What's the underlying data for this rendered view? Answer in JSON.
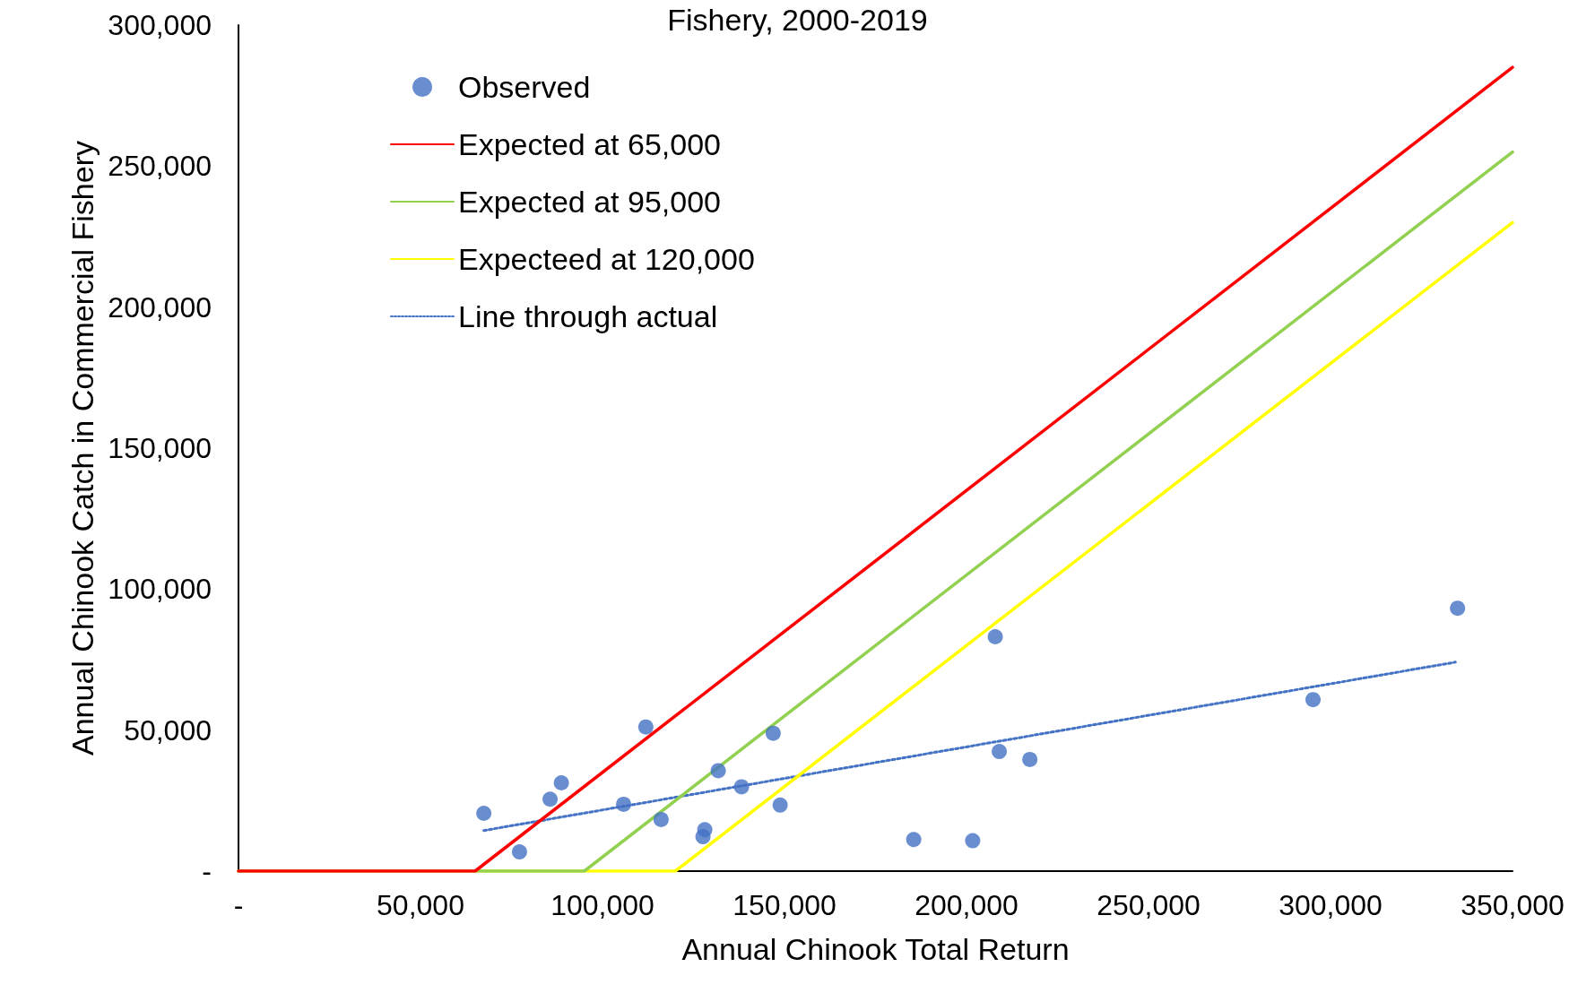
{
  "chart_data": {
    "type": "scatter",
    "title": "Fishery, 2000-2019",
    "xlabel": "Annual Chinook Total Return",
    "ylabel": "Annual Chinook Catch in Commercial Fishery",
    "xlim": [
      0,
      350000
    ],
    "xticks": [
      {
        "value": 0,
        "label": "-"
      },
      {
        "value": 50000,
        "label": "50,000"
      },
      {
        "value": 100000,
        "label": "100,000"
      },
      {
        "value": 150000,
        "label": "150,000"
      },
      {
        "value": 200000,
        "label": "200,000"
      },
      {
        "value": 250000,
        "label": "250,000"
      },
      {
        "value": 300000,
        "label": "300,000"
      },
      {
        "value": 350000,
        "label": "350,000"
      }
    ],
    "ylim": [
      0,
      300000
    ],
    "yticks": [
      {
        "value": 0,
        "label": "-"
      },
      {
        "value": 50000,
        "label": "50,000"
      },
      {
        "value": 100000,
        "label": "100,000"
      },
      {
        "value": 150000,
        "label": "150,000"
      },
      {
        "value": 200000,
        "label": "200,000"
      },
      {
        "value": 250000,
        "label": "250,000"
      },
      {
        "value": 300000,
        "label": "300,000"
      }
    ],
    "grid": false,
    "legend": "top left",
    "series": [
      {
        "name": "Observed",
        "marker": "circle",
        "color": "#4472c4",
        "x": [
          67400,
          77200,
          85600,
          88700,
          105800,
          111900,
          116100,
          128100,
          127600,
          131800,
          138200,
          146900,
          148800,
          185500,
          201700,
          207900,
          209000,
          217400,
          295200,
          334900
        ],
        "values": [
          20500,
          6800,
          25500,
          31300,
          23700,
          51100,
          18300,
          14700,
          12200,
          35600,
          29900,
          48900,
          23400,
          11200,
          10800,
          83100,
          42400,
          39600,
          60800,
          93200
        ]
      },
      {
        "name": "Expected at 65,000",
        "type": "line",
        "marker": "none",
        "line_style": "solid",
        "color": "#ff0000",
        "x": [
          0,
          65000,
          350000
        ],
        "values": [
          0,
          0,
          285000
        ]
      },
      {
        "name": "Expected at 95,000",
        "type": "line",
        "marker": "none",
        "line_style": "solid",
        "color": "#92d050",
        "x": [
          0,
          95000,
          350000
        ],
        "values": [
          0,
          0,
          255000
        ]
      },
      {
        "name": "Expecteed at 120,000",
        "type": "line",
        "marker": "none",
        "line_style": "solid",
        "color": "#ffff00",
        "x": [
          0,
          120000,
          350000
        ],
        "values": [
          0,
          0,
          230000
        ]
      },
      {
        "name": "Line through actual",
        "type": "line",
        "marker": "none",
        "line_style": "dotted",
        "color": "#4472c4",
        "x": [
          67400,
          334300
        ],
        "values": [
          14400,
          74100
        ]
      }
    ]
  }
}
